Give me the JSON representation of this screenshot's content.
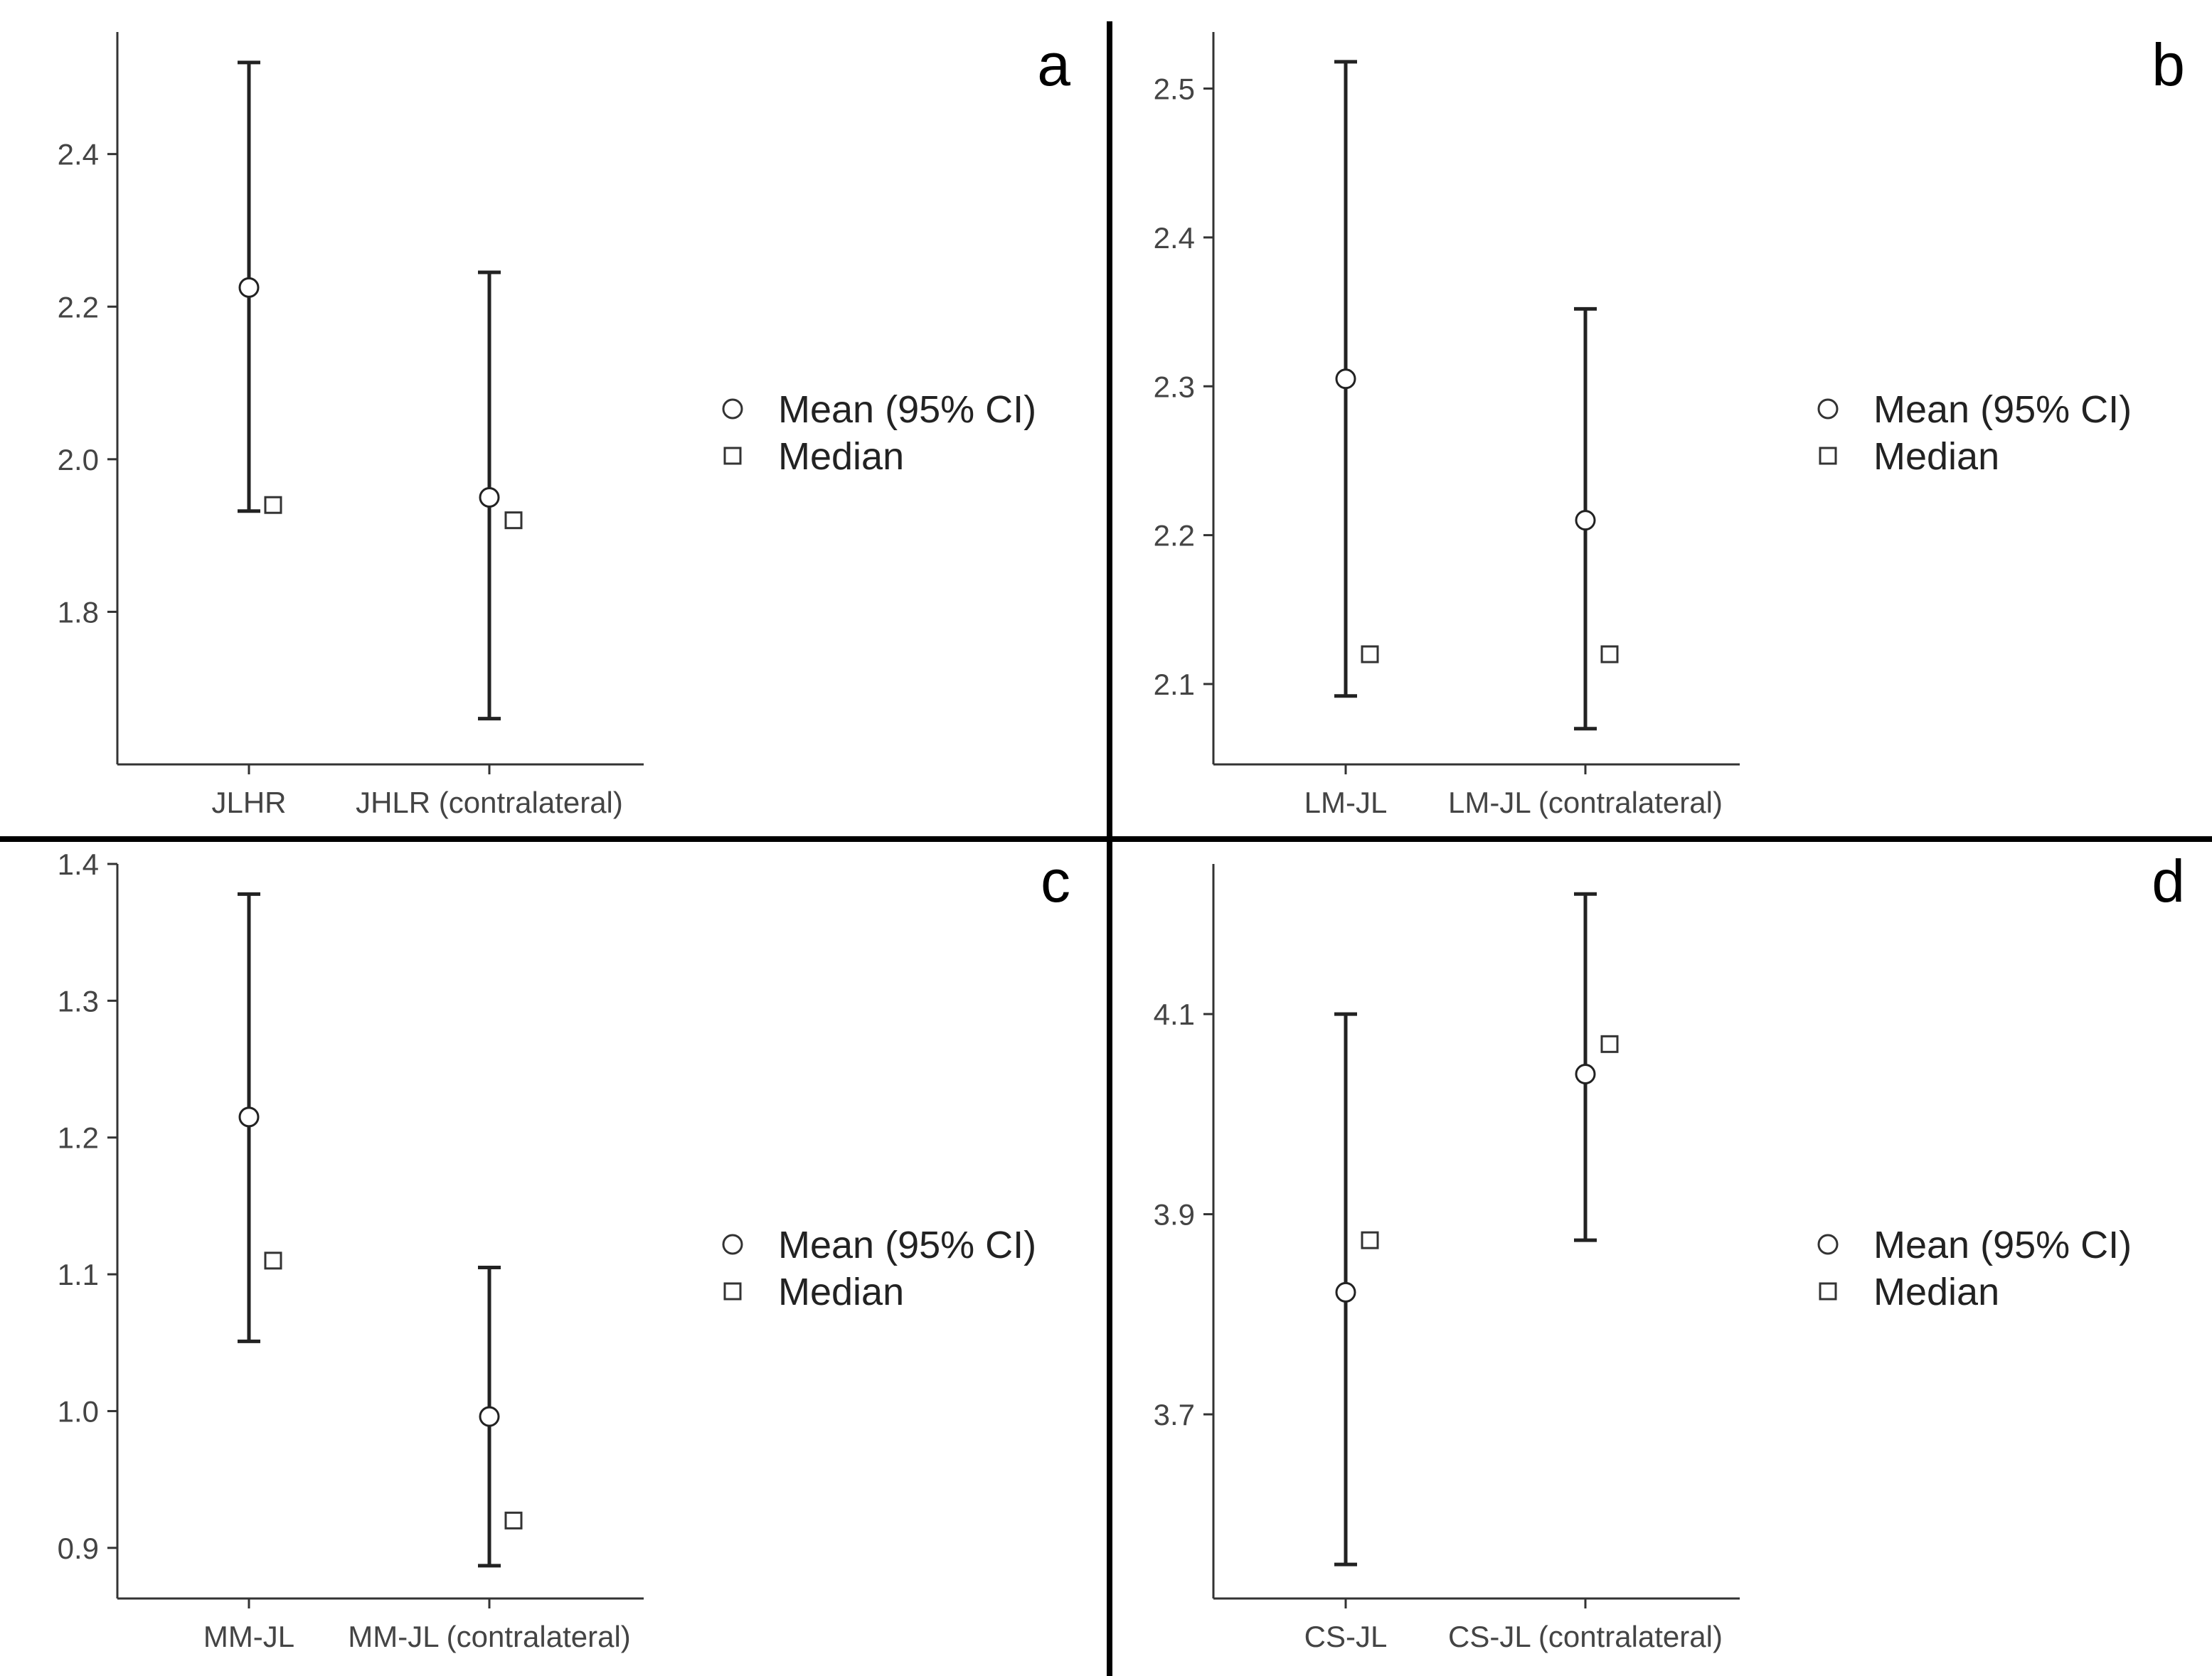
{
  "legend": {
    "mean_label": "Mean (95% CI)",
    "median_label": "Median"
  },
  "chart_data": [
    {
      "type": "errorbar",
      "panel_label": "a",
      "title": "",
      "xlabel": "",
      "ylabel": "",
      "categories": [
        "JLHR",
        "JHLR (contralateral)"
      ],
      "mean": [
        2.225,
        1.95
      ],
      "ci_lower": [
        1.932,
        1.66
      ],
      "ci_upper": [
        2.52,
        2.245
      ],
      "median": [
        1.94,
        1.92
      ],
      "ylim": [
        1.6,
        2.56
      ],
      "yticks": [
        "1.8",
        "2.0",
        "2.2",
        "2.4"
      ],
      "grid": false,
      "legend_position": "right"
    },
    {
      "type": "errorbar",
      "panel_label": "b",
      "title": "",
      "xlabel": "",
      "ylabel": "",
      "categories": [
        "LM-JL",
        "LM-JL (contralateral)"
      ],
      "mean": [
        2.305,
        2.21
      ],
      "ci_lower": [
        2.092,
        2.07
      ],
      "ci_upper": [
        2.518,
        2.352
      ],
      "median": [
        2.12,
        2.12
      ],
      "ylim": [
        2.046,
        2.538
      ],
      "yticks": [
        "2.1",
        "2.2",
        "2.3",
        "2.4",
        "2.5"
      ],
      "grid": false,
      "legend_position": "right"
    },
    {
      "type": "errorbar",
      "panel_label": "c",
      "title": "",
      "xlabel": "",
      "ylabel": "",
      "categories": [
        "MM-JL",
        "MM-JL (contralateral)"
      ],
      "mean": [
        1.215,
        0.996
      ],
      "ci_lower": [
        1.051,
        0.887
      ],
      "ci_upper": [
        1.378,
        1.105
      ],
      "median": [
        1.11,
        0.92
      ],
      "ylim": [
        0.863,
        1.4
      ],
      "yticks": [
        "0.9",
        "1.0",
        "1.1",
        "1.2",
        "1.3",
        "1.4"
      ],
      "grid": false,
      "legend_position": "right"
    },
    {
      "type": "errorbar",
      "panel_label": "d",
      "title": "",
      "xlabel": "",
      "ylabel": "",
      "categories": [
        "CS-JL",
        "CS-JL (contralateral)"
      ],
      "mean": [
        3.822,
        4.04
      ],
      "ci_lower": [
        3.55,
        3.874
      ],
      "ci_upper": [
        4.1,
        4.22
      ],
      "median": [
        3.874,
        4.07
      ],
      "ylim": [
        3.516,
        4.25
      ],
      "yticks": [
        "3.7",
        "3.9",
        "4.1"
      ],
      "grid": false,
      "legend_position": "right"
    }
  ]
}
